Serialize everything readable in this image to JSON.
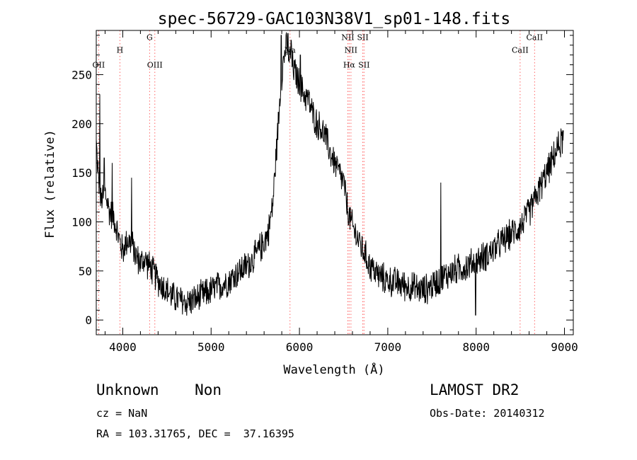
{
  "chart_data": {
    "type": "line",
    "title": "spec-56729-GAC103N38V1_sp01-148.fits",
    "xlabel": "Wavelength (Å)",
    "ylabel": "Flux (relative)",
    "xlim": [
      3700,
      9100
    ],
    "ylim": [
      -15,
      295
    ],
    "xticks": [
      4000,
      5000,
      6000,
      7000,
      8000,
      9000
    ],
    "yticks": [
      0,
      50,
      100,
      150,
      200,
      250
    ],
    "grid": false,
    "line_color": "#000000",
    "marker_color": "#ff6666",
    "spectrum": {
      "name": "",
      "anchors": [
        [
          3700,
          180
        ],
        [
          3720,
          150
        ],
        [
          3750,
          120
        ],
        [
          3800,
          130
        ],
        [
          3850,
          110
        ],
        [
          3900,
          105
        ],
        [
          3950,
          85
        ],
        [
          4000,
          70
        ],
        [
          4050,
          82
        ],
        [
          4100,
          78
        ],
        [
          4150,
          65
        ],
        [
          4200,
          58
        ],
        [
          4250,
          62
        ],
        [
          4300,
          55
        ],
        [
          4350,
          48
        ],
        [
          4400,
          40
        ],
        [
          4450,
          35
        ],
        [
          4500,
          30
        ],
        [
          4550,
          25
        ],
        [
          4600,
          22
        ],
        [
          4650,
          20
        ],
        [
          4700,
          18
        ],
        [
          4800,
          20
        ],
        [
          4900,
          25
        ],
        [
          5000,
          30
        ],
        [
          5100,
          35
        ],
        [
          5200,
          40
        ],
        [
          5300,
          48
        ],
        [
          5400,
          55
        ],
        [
          5500,
          65
        ],
        [
          5600,
          80
        ],
        [
          5650,
          90
        ],
        [
          5700,
          120
        ],
        [
          5730,
          160
        ],
        [
          5760,
          200
        ],
        [
          5790,
          240
        ],
        [
          5820,
          265
        ],
        [
          5850,
          280
        ],
        [
          5880,
          270
        ],
        [
          5920,
          260
        ],
        [
          5960,
          250
        ],
        [
          6000,
          240
        ],
        [
          6050,
          230
        ],
        [
          6100,
          225
        ],
        [
          6150,
          210
        ],
        [
          6200,
          200
        ],
        [
          6250,
          195
        ],
        [
          6300,
          185
        ],
        [
          6350,
          170
        ],
        [
          6400,
          160
        ],
        [
          6450,
          150
        ],
        [
          6500,
          140
        ],
        [
          6550,
          110
        ],
        [
          6600,
          95
        ],
        [
          6650,
          85
        ],
        [
          6700,
          75
        ],
        [
          6750,
          65
        ],
        [
          6800,
          55
        ],
        [
          6850,
          50
        ],
        [
          6900,
          45
        ],
        [
          7000,
          40
        ],
        [
          7100,
          38
        ],
        [
          7200,
          35
        ],
        [
          7300,
          33
        ],
        [
          7400,
          30
        ],
        [
          7500,
          35
        ],
        [
          7600,
          42
        ],
        [
          7700,
          48
        ],
        [
          7800,
          52
        ],
        [
          7900,
          55
        ],
        [
          8000,
          60
        ],
        [
          8100,
          65
        ],
        [
          8200,
          72
        ],
        [
          8300,
          80
        ],
        [
          8400,
          88
        ],
        [
          8500,
          95
        ],
        [
          8600,
          110
        ],
        [
          8700,
          130
        ],
        [
          8800,
          150
        ],
        [
          8900,
          170
        ],
        [
          8950,
          180
        ],
        [
          8990,
          185
        ]
      ],
      "noise_amplitude": 18,
      "spikes": [
        [
          3740,
          230
        ],
        [
          3790,
          165
        ],
        [
          3880,
          160
        ],
        [
          4100,
          145
        ],
        [
          5795,
          290
        ],
        [
          5870,
          292
        ],
        [
          5905,
          285
        ],
        [
          6010,
          270
        ],
        [
          7600,
          140
        ],
        [
          7995,
          5
        ],
        [
          9000,
          175
        ]
      ]
    },
    "lines": [
      {
        "name": "OII",
        "x": 3727,
        "label_y": 260,
        "color": "#ff6666"
      },
      {
        "name": "H",
        "x": 3968,
        "label_y": 275,
        "color": "#ff6666"
      },
      {
        "name": "G",
        "x": 4304,
        "label_y": 288,
        "color": "#ff6666"
      },
      {
        "name": "OIII",
        "x": 4363,
        "label_y": 260,
        "color": "#ff6666"
      },
      {
        "name": "Na",
        "x": 5893,
        "label_y": 275,
        "color": "#ff6666"
      },
      {
        "name": "NII",
        "x": 6548,
        "label_y": 288,
        "color": "#ff6666"
      },
      {
        "name": "NII",
        "x": 6583,
        "label_y": 275,
        "color": "#ff6666"
      },
      {
        "name": "Hα",
        "x": 6563,
        "label_y": 260,
        "color": "#ff6666"
      },
      {
        "name": "SII",
        "x": 6717,
        "label_y": 288,
        "color": "#ff6666"
      },
      {
        "name": "SII",
        "x": 6731,
        "label_y": 260,
        "color": "#ff6666"
      },
      {
        "name": "CaII",
        "x": 8498,
        "label_y": 275,
        "color": "#ff6666"
      },
      {
        "name": "CaII",
        "x": 8662,
        "label_y": 288,
        "color": "#ff6666"
      }
    ]
  },
  "info": {
    "classification": "Unknown    Non",
    "survey": "LAMOST DR2",
    "redshift": "cz = NaN",
    "obs_date": "Obs-Date: 20140312",
    "coords": "RA = 103.31765, DEC =  37.16395"
  }
}
